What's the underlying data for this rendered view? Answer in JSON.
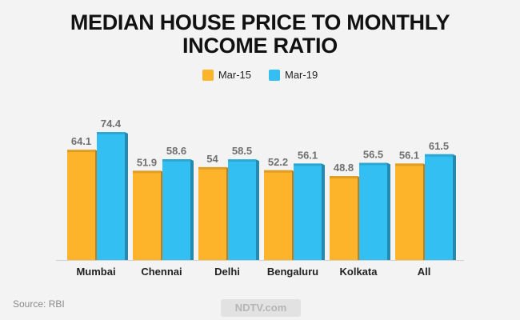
{
  "chart_data": {
    "type": "bar",
    "title": "MEDIAN HOUSE PRICE TO MONTHLY INCOME RATIO",
    "categories": [
      "Mumbai",
      "Chennai",
      "Delhi",
      "Bengaluru",
      "Kolkata",
      "All"
    ],
    "series": [
      {
        "name": "Mar-15",
        "values": [
          64.1,
          51.9,
          54,
          52.2,
          48.8,
          56.1
        ],
        "labels": [
          "64.1",
          "51.9",
          "54",
          "52.2",
          "48.8",
          "56.1"
        ],
        "color": "#FDB32A"
      },
      {
        "name": "Mar-19",
        "values": [
          74.4,
          58.6,
          58.5,
          56.1,
          56.5,
          61.5
        ],
        "labels": [
          "74.4",
          "58.6",
          "58.5",
          "56.1",
          "56.5",
          "61.5"
        ],
        "color": "#33BFF1"
      }
    ],
    "ylim": [
      0,
      80
    ],
    "legend": "top-center",
    "grid": false
  },
  "title_lines": [
    "MEDIAN HOUSE PRICE TO MONTHLY",
    "INCOME RATIO"
  ],
  "legend_items": [
    {
      "label": "Mar-15",
      "color": "#FDB32A"
    },
    {
      "label": "Mar-19",
      "color": "#33BFF1"
    }
  ],
  "source": "Source: RBI",
  "brand": "NDTV.com"
}
